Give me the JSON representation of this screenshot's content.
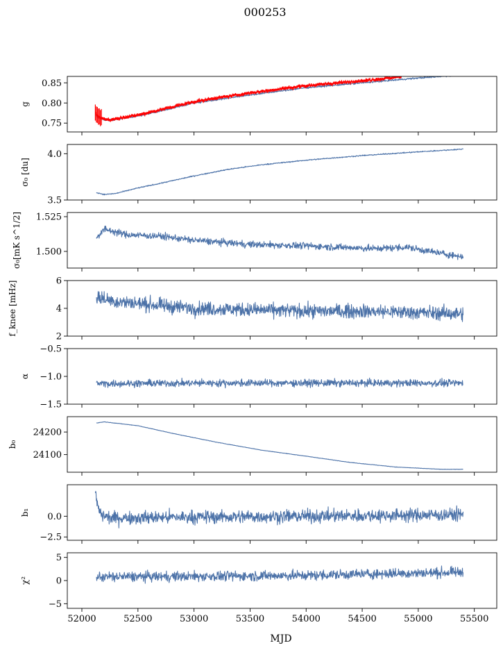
{
  "chart_data": {
    "type": "line",
    "title": "000253",
    "xlabel": "MJD",
    "xlim": [
      51870,
      55700
    ],
    "x_ticks": [
      52000,
      52500,
      53000,
      53500,
      54000,
      54500,
      55000,
      55500
    ],
    "x_tick_labels": [
      "52000",
      "52500",
      "53000",
      "53500",
      "54000",
      "54500",
      "55000",
      "55500"
    ],
    "series_color": "#4c72a8",
    "overlay_color": "#ff0000",
    "panels": [
      {
        "ylabel": "g",
        "ylim": [
          0.728,
          0.866
        ],
        "y_ticks": [
          0.75,
          0.8,
          0.85
        ],
        "y_tick_labels": [
          "0.75",
          "0.80",
          "0.85"
        ],
        "series": [
          {
            "color": "#4c72a8",
            "noise": 0.0015,
            "x": [
              52120,
              52150,
              52200,
              52250,
              52300,
              52500,
              52700,
              53000,
              53500,
              54000,
              54500,
              55000,
              55400
            ],
            "y": [
              0.77,
              0.762,
              0.758,
              0.757,
              0.759,
              0.768,
              0.78,
              0.8,
              0.82,
              0.838,
              0.85,
              0.862,
              0.87
            ]
          },
          {
            "color": "#ff0000",
            "noise": 0.002,
            "errorbar": true,
            "x": [
              52120,
              52150,
              52200,
              52250,
              52300,
              52500,
              52700,
              53000,
              53500,
              54000,
              54500,
              54850
            ],
            "y": [
              0.775,
              0.765,
              0.76,
              0.758,
              0.761,
              0.77,
              0.783,
              0.803,
              0.825,
              0.843,
              0.855,
              0.865
            ]
          }
        ]
      },
      {
        "ylabel": "σ₀ [du]",
        "ylim": [
          3.5,
          4.1
        ],
        "y_ticks": [
          3.5,
          4.0
        ],
        "y_tick_labels": [
          "3.5",
          "4.0"
        ],
        "series": [
          {
            "color": "#4c72a8",
            "noise": 0.004,
            "x": [
              52130,
              52200,
              52300,
              52500,
              52700,
              53000,
              53300,
              53600,
              54000,
              54500,
              55000,
              55400
            ],
            "y": [
              3.58,
              3.56,
              3.57,
              3.63,
              3.68,
              3.76,
              3.83,
              3.88,
              3.93,
              3.98,
              4.02,
              4.05
            ]
          }
        ]
      },
      {
        "ylabel": "σ₀[mK s^1/2]",
        "ylim": [
          1.488,
          1.528
        ],
        "y_ticks": [
          1.5,
          1.525
        ],
        "y_tick_labels": [
          "1.500",
          "1.525"
        ],
        "series": [
          {
            "color": "#4c72a8",
            "noise": 0.0017,
            "x": [
              52130,
              52200,
              52400,
              52700,
              53000,
              53500,
              54000,
              54300,
              54600,
              54900,
              55100,
              55400
            ],
            "y": [
              1.51,
              1.516,
              1.512,
              1.511,
              1.508,
              1.505,
              1.504,
              1.503,
              1.502,
              1.503,
              1.5,
              1.496
            ]
          }
        ]
      },
      {
        "ylabel": "f_knee [mHz]",
        "ylim": [
          2,
          6
        ],
        "y_ticks": [
          2,
          4,
          6
        ],
        "y_tick_labels": [
          "2",
          "4",
          "6"
        ],
        "series": [
          {
            "color": "#4c72a8",
            "noise": 0.35,
            "x": [
              52130,
              52300,
              52700,
              53000,
              53500,
              54000,
              54500,
              55000,
              55400
            ],
            "y": [
              4.8,
              4.5,
              4.2,
              4.0,
              3.9,
              3.8,
              3.8,
              3.7,
              3.6
            ]
          }
        ]
      },
      {
        "ylabel": "α",
        "ylim": [
          -1.5,
          -0.5
        ],
        "y_ticks": [
          -1.5,
          -1.0,
          -0.5
        ],
        "y_tick_labels": [
          "−1.5",
          "−1.0",
          "−0.5"
        ],
        "series": [
          {
            "color": "#4c72a8",
            "noise": 0.045,
            "x": [
              52130,
              53000,
              54000,
              55400
            ],
            "y": [
              -1.13,
              -1.12,
              -1.12,
              -1.12
            ]
          }
        ]
      },
      {
        "ylabel": "b₀",
        "ylim": [
          24022,
          24268
        ],
        "y_ticks": [
          24100,
          24200
        ],
        "y_tick_labels": [
          "24100",
          "24200"
        ],
        "series": [
          {
            "color": "#4c72a8",
            "noise": 0.6,
            "x": [
              52130,
              52200,
              52500,
              52800,
              53200,
              53600,
              54000,
              54400,
              54800,
              55200,
              55400
            ],
            "y": [
              24240,
              24245,
              24228,
              24195,
              24155,
              24120,
              24093,
              24065,
              24045,
              24035,
              24035
            ]
          }
        ]
      },
      {
        "ylabel": "b₁",
        "ylim": [
          -2.9,
          3.8
        ],
        "y_ticks": [
          -2.5,
          0.0
        ],
        "y_tick_labels": [
          "−2.5",
          "0.0"
        ],
        "series": [
          {
            "color": "#4c72a8",
            "noise": 0.55,
            "x": [
              52120,
              52140,
              52170,
              52250,
              53000,
              54000,
              55400
            ],
            "y": [
              3.0,
              1.2,
              0.2,
              -0.2,
              -0.1,
              0.0,
              0.2
            ]
          }
        ]
      },
      {
        "ylabel": "χ²",
        "ylim": [
          -6,
          6
        ],
        "y_ticks": [
          -5,
          0,
          5
        ],
        "y_tick_labels": [
          "−5",
          "0",
          "5"
        ],
        "series": [
          {
            "color": "#4c72a8",
            "noise": 0.75,
            "x": [
              52130,
              53000,
              54000,
              54500,
              55000,
              55400
            ],
            "y": [
              0.8,
              0.9,
              1.1,
              1.4,
              1.6,
              1.8
            ]
          }
        ]
      }
    ]
  }
}
